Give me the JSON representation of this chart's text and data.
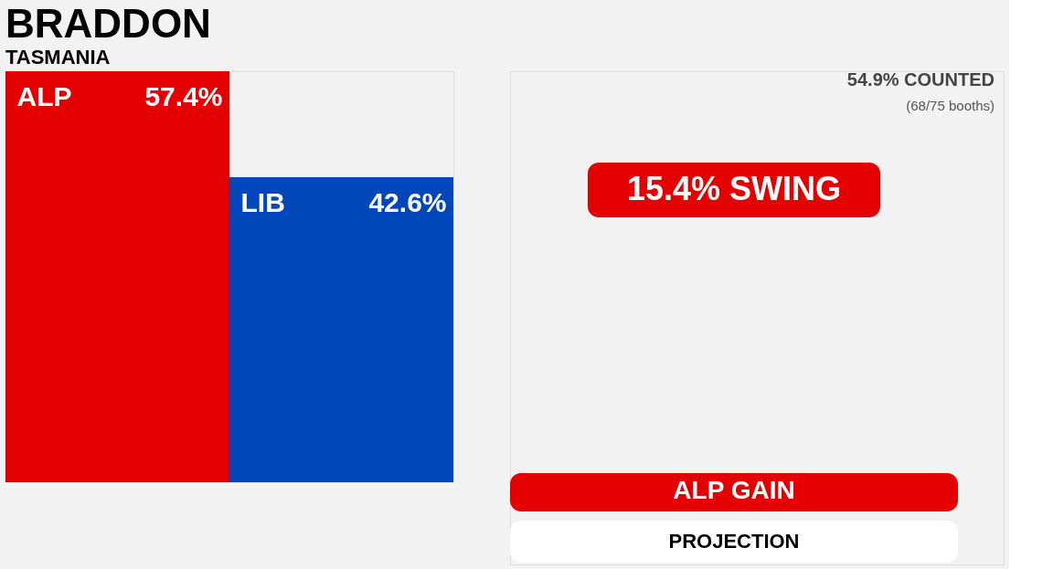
{
  "chart_data": [
    {
      "type": "bar",
      "subtitle": "TASMANIA",
      "title": "BRADDON",
      "categories": [
        "ALP",
        "LIB"
      ],
      "values": [
        57.4,
        42.6
      ],
      "colors": [
        "#e50000",
        "#0047bb"
      ],
      "value_labels": [
        "57.4%",
        "42.6%"
      ]
    },
    {
      "type": "other",
      "annotations": [
        "54.9% COUNTED",
        "(68/75 booths)",
        "15.4% SWING",
        "ALP GAIN",
        "PROJECTION"
      ]
    }
  ]
}
